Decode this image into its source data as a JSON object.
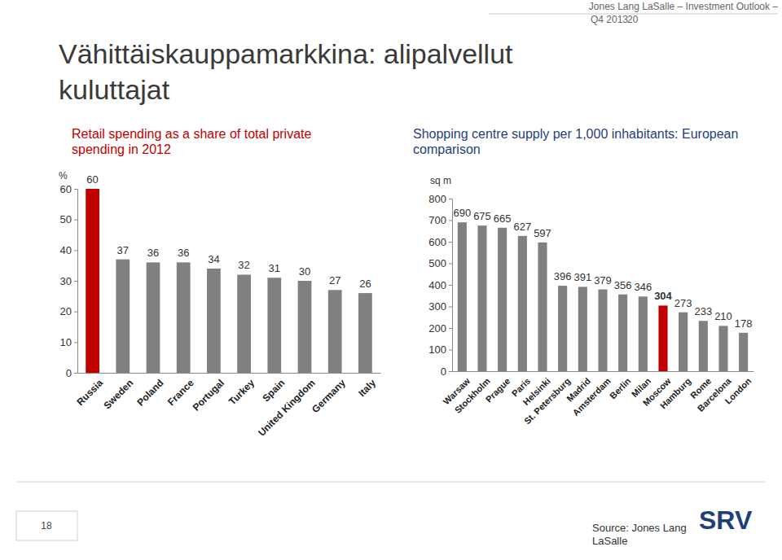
{
  "page": {
    "header": [
      "Jones Lang LaSalle – Investment Outlook –",
      "Q4 2013"
    ],
    "header_page": "20",
    "title": "Vähittäiskauppamarkkina: alipalvellut kuluttajat",
    "page_number": "18",
    "source": "Source: Jones Lang LaSalle",
    "logo": "SRV"
  },
  "chart_data": [
    {
      "type": "bar",
      "title": "Retail spending as a share of total private spending in 2012",
      "ylabel": "%",
      "categories": [
        "Russia",
        "Sweden",
        "Poland",
        "France",
        "Portugal",
        "Turkey",
        "Spain",
        "United Kingdom",
        "Germany",
        "Italy"
      ],
      "values": [
        60,
        37,
        36,
        36,
        34,
        32,
        31,
        30,
        27,
        26
      ],
      "colors": [
        "#c00000",
        "#808080",
        "#808080",
        "#808080",
        "#808080",
        "#808080",
        "#808080",
        "#808080",
        "#808080",
        "#808080"
      ],
      "ylim": [
        0,
        60
      ],
      "yticks": [
        0,
        10,
        20,
        30,
        40,
        50,
        60
      ],
      "grid": false,
      "data_labels": true
    },
    {
      "type": "bar",
      "title": "Shopping centre supply per 1,000 inhabitants: European comparison",
      "ylabel": "sq m",
      "categories": [
        "Warsaw",
        "Stockholm",
        "Prague",
        "Paris",
        "Helsinki",
        "St. Petersburg",
        "Madrid",
        "Amsterdam",
        "Berlin",
        "Milan",
        "Moscow",
        "Hamburg",
        "Rome",
        "Barcelona",
        "London"
      ],
      "values": [
        690,
        675,
        665,
        627,
        597,
        396,
        391,
        379,
        356,
        346,
        304,
        273,
        233,
        210,
        178
      ],
      "colors": [
        "#808080",
        "#808080",
        "#808080",
        "#808080",
        "#808080",
        "#808080",
        "#808080",
        "#808080",
        "#808080",
        "#808080",
        "#c00000",
        "#808080",
        "#808080",
        "#808080",
        "#808080"
      ],
      "ylim": [
        0,
        800
      ],
      "yticks": [
        0,
        100,
        200,
        300,
        400,
        500,
        600,
        700,
        800
      ],
      "grid": false,
      "data_labels": true
    }
  ]
}
